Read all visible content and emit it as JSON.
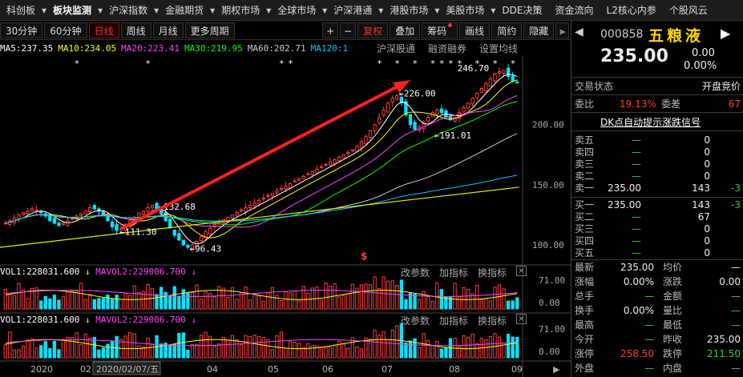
{
  "topnav": {
    "items": [
      "科创板",
      "板块监测",
      "沪深指数",
      "金融期货",
      "期权市场",
      "全球市场",
      "沪深港通",
      "港股市场",
      "美股市场",
      "DDE决策",
      "资金流向",
      "L2核心内参",
      "个股风云"
    ],
    "active_index": 1
  },
  "toolbar": {
    "periods": [
      "30分钟",
      "60分钟",
      "日线",
      "周线",
      "月线",
      "更多周期"
    ],
    "active_period_index": 2,
    "right_buttons": [
      "复权",
      "叠加",
      "筹码",
      "画线",
      "简约",
      "隐藏"
    ]
  },
  "ma_line": [
    {
      "text": "MA5:237.35",
      "color": "#ffffff"
    },
    {
      "text": "MA10:234.05",
      "color": "#ffff00"
    },
    {
      "text": "MA20:223.41",
      "color": "#ff40ff"
    },
    {
      "text": "MA30:219.95",
      "color": "#00ff00"
    },
    {
      "text": "MA60:202.71",
      "color": "#cccccc"
    },
    {
      "text": "MA120:1",
      "color": "#00c8ff"
    }
  ],
  "chart_tools": [
    "沪深股通",
    "融资融券",
    "设置均线"
  ],
  "chart_data": {
    "type": "candlestick",
    "y_axis_labels": [
      "200.00",
      "150.00",
      "100.00"
    ],
    "y_range": [
      88,
      255
    ],
    "x_axis_labels": [
      "2020",
      "02",
      "2020/02/07/五",
      "04",
      "05",
      "06",
      "07",
      "08",
      "09"
    ],
    "annotations": [
      {
        "label": "246.70",
        "type": "high"
      },
      {
        "label": "226.00",
        "type": "peak"
      },
      {
        "label": "191.01",
        "type": "trough"
      },
      {
        "label": "132.68",
        "type": "peak"
      },
      {
        "label": "111.30",
        "type": "trough"
      },
      {
        "label": "96.43",
        "type": "low"
      }
    ],
    "closes_approx": [
      118,
      120,
      122,
      125,
      127,
      128,
      130,
      129,
      127,
      124,
      120,
      118,
      116,
      118,
      120,
      122,
      124,
      126,
      128,
      131,
      130,
      128,
      125,
      120,
      115,
      112,
      114,
      117,
      120,
      123,
      126,
      128,
      131,
      133,
      130,
      126,
      120,
      114,
      108,
      104,
      100,
      98,
      100,
      103,
      107,
      111,
      114,
      117,
      119,
      121,
      123,
      125,
      127,
      129,
      131,
      133,
      135,
      137,
      139,
      141,
      143,
      145,
      147,
      149,
      151,
      153,
      155,
      157,
      159,
      161,
      163,
      165,
      167,
      169,
      171,
      173,
      175,
      177,
      179,
      182,
      186,
      190,
      195,
      200,
      206,
      212,
      218,
      222,
      224,
      218,
      208,
      200,
      196,
      198,
      202,
      206,
      210,
      212,
      210,
      206,
      204,
      206,
      210,
      214,
      218,
      222,
      226,
      230,
      234,
      238,
      242,
      244,
      245,
      240,
      236,
      235
    ]
  },
  "vol_panel_1": {
    "vol": "VOL1:228031.600",
    "mavol": "MAVOL2:229006.700",
    "tools": [
      "改参数",
      "加指标",
      "换指标"
    ],
    "y_labels": [
      "71.00",
      "0.00"
    ]
  },
  "vol_panel_2": {
    "vol": "VOL1:228031.600",
    "mavol": "MAVOL2:229006.700",
    "tools": [
      "改参数",
      "加指标",
      "换指标"
    ],
    "y_labels": [
      "71.00",
      "0.00"
    ]
  },
  "stock": {
    "code": "000858",
    "name": "五粮液",
    "price": "235.00",
    "change": "0.00",
    "pct": "0.00%"
  },
  "trade_status": {
    "label": "交易状态",
    "value": "开盘竞价"
  },
  "weibi": {
    "label": "委比",
    "value": "19.13%",
    "diff_label": "委差",
    "diff_value": "67"
  },
  "dk_signal": "DK点自动提示涨跌信号",
  "order_book": {
    "sell": [
      {
        "label": "卖五",
        "price": "—",
        "vol": "0",
        "chg": ""
      },
      {
        "label": "卖四",
        "price": "—",
        "vol": "0",
        "chg": ""
      },
      {
        "label": "卖三",
        "price": "—",
        "vol": "0",
        "chg": ""
      },
      {
        "label": "卖二",
        "price": "—",
        "vol": "0",
        "chg": ""
      },
      {
        "label": "卖一",
        "price": "235.00",
        "vol": "143",
        "chg": "-3"
      }
    ],
    "buy": [
      {
        "label": "买一",
        "price": "235.00",
        "vol": "143",
        "chg": "-3"
      },
      {
        "label": "买二",
        "price": "—",
        "vol": "67",
        "chg": ""
      },
      {
        "label": "买三",
        "price": "—",
        "vol": "0",
        "chg": ""
      },
      {
        "label": "买四",
        "price": "—",
        "vol": "0",
        "chg": ""
      },
      {
        "label": "买五",
        "price": "—",
        "vol": "0",
        "chg": ""
      }
    ]
  },
  "stats": [
    {
      "l1": "最新",
      "v1": "235.00",
      "c1": "wht",
      "l2": "均价",
      "v2": "—",
      "c2": "wht"
    },
    {
      "l1": "涨幅",
      "v1": "0.00%",
      "c1": "wht",
      "l2": "涨跌",
      "v2": "0.00",
      "c2": "wht"
    },
    {
      "l1": "总手",
      "v1": "—",
      "c1": "grn",
      "l2": "金额",
      "v2": "—",
      "c2": "grn"
    },
    {
      "l1": "换手",
      "v1": "0.00%",
      "c1": "wht",
      "l2": "量比",
      "v2": "—",
      "c2": "grn"
    },
    {
      "l1": "最高",
      "v1": "—",
      "c1": "grn",
      "l2": "最低",
      "v2": "—",
      "c2": "grn"
    },
    {
      "l1": "今开",
      "v1": "—",
      "c1": "grn",
      "l2": "昨收",
      "v2": "235.00",
      "c2": "wht"
    },
    {
      "l1": "涨停",
      "v1": "258.50",
      "c1": "red",
      "l2": "跌停",
      "v2": "211.50",
      "c2": "grn"
    },
    {
      "l1": "外盘",
      "v1": "—",
      "c1": "grn",
      "l2": "内盘",
      "v2": "—",
      "c2": "grn"
    }
  ]
}
